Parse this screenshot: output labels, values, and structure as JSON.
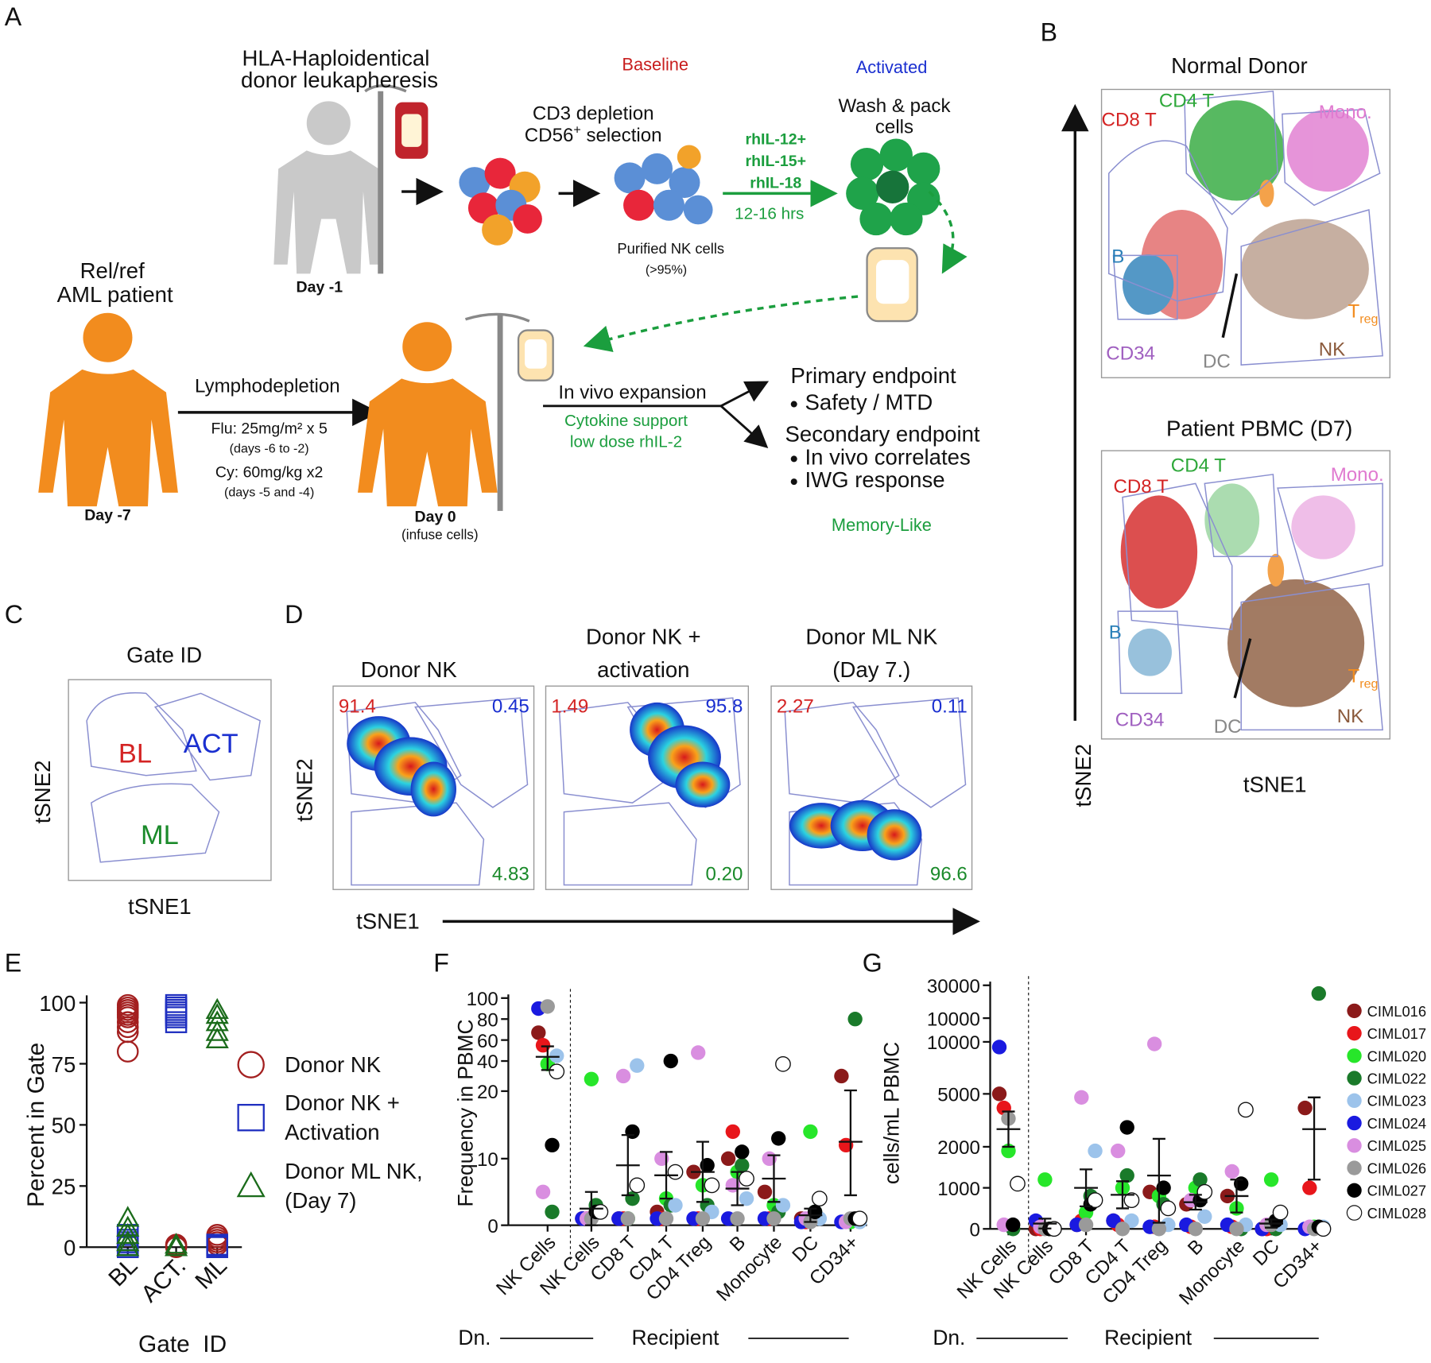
{
  "panels": [
    "A",
    "B",
    "C",
    "D",
    "E",
    "F",
    "G"
  ],
  "diagram": {
    "donor_title": [
      "HLA-Haploidentical",
      "donor leukapheresis"
    ],
    "day_donor": "Day -1",
    "patient_title": [
      "Rel/ref",
      "AML patient"
    ],
    "day_patient": "Day -7",
    "cd3": "CD3 depletion",
    "cd56": "CD56",
    "cd56_sup": "+",
    "selection": " selection",
    "purified": "Purified NK cells",
    "purity": "(>95%)",
    "baseline": "Baseline",
    "activated": "Activated",
    "memory_like": "Memory-Like",
    "cytokines": [
      "rhIL-12+",
      "rhIL-15+",
      "rhIL-18"
    ],
    "duration": "12-16 hrs",
    "wash": [
      "Wash & pack",
      "cells"
    ],
    "lympho": "Lymphodepletion",
    "flu": "Flu: 25mg/m² x 5",
    "flu_days": "(days -6 to -2)",
    "cy": "Cy: 60mg/kg x2",
    "cy_days": "(days -5 and -4)",
    "day0": "Day 0",
    "infuse": "(infuse cells)",
    "invivo": "In vivo expansion",
    "support": [
      "Cytokine support",
      "low dose rhIL-2"
    ],
    "primary": "Primary endpoint",
    "primary_items": [
      "Safety / MTD"
    ],
    "secondary": "Secondary endpoint",
    "secondary_items": [
      "In vivo correlates",
      "IWG response"
    ]
  },
  "tsne": {
    "titles": [
      "Normal Donor",
      "Patient PBMC (D7)"
    ],
    "xlabel": "tSNE1",
    "ylabel": "tSNE2",
    "cd8": "CD8 T",
    "cd4": "CD4 T",
    "mono": "Mono.",
    "b": "B",
    "treg_t": "T",
    "treg_sub": "reg",
    "cd34": "CD34",
    "dc": "DC",
    "nk": "NK"
  },
  "gates": {
    "title": "Gate ID",
    "labels": [
      "BL",
      "ACT",
      "ML"
    ],
    "xlabel": "tSNE1",
    "ylabel": "tSNE2"
  },
  "density": {
    "xlabel": "tSNE1",
    "ylabel": "tSNE2",
    "plots": [
      {
        "title": [
          "Donor NK"
        ],
        "values": [
          "91.4",
          "0.45",
          "4.83"
        ]
      },
      {
        "title": [
          "Donor NK +",
          "activation"
        ],
        "values": [
          "1.49",
          "95.8",
          "0.20"
        ]
      },
      {
        "title": [
          "Donor ML NK",
          "(Day 7.)"
        ],
        "values": [
          "2.27",
          "0.11",
          "96.6"
        ]
      }
    ]
  },
  "chart_data": [
    {
      "type": "strip",
      "ylabel": "Percent in Gate",
      "xlabel": "Gate  ID",
      "categories": [
        "BL",
        "ACT.",
        "ML"
      ],
      "ylim": [
        0,
        100
      ],
      "yticks": [
        0,
        25,
        50,
        75,
        100
      ],
      "series": [
        {
          "name": "Donor NK",
          "color": "#a31f1f",
          "marker": "circle",
          "values": [
            [
              80,
              88,
              90,
              92,
              94,
              95,
              96,
              97,
              98,
              99
            ],
            [
              0,
              0.5,
              1
            ],
            [
              1,
              2,
              3,
              4,
              5
            ]
          ]
        },
        {
          "name": "Donor NK + Activation",
          "color": "#1f2fc0",
          "marker": "square",
          "values": [
            [
              0,
              1,
              2,
              3,
              5
            ],
            [
              92,
              94,
              95,
              96,
              97,
              98,
              99
            ],
            [
              0,
              0.5,
              1
            ]
          ]
        },
        {
          "name": "Donor ML NK, (Day 7)",
          "color": "#1a6b1a",
          "marker": "triangle",
          "values": [
            [
              0,
              2,
              5,
              8,
              12
            ],
            [
              0,
              1
            ],
            [
              85,
              88,
              92,
              95,
              97
            ]
          ]
        }
      ]
    },
    {
      "type": "dot",
      "ylabel": "Frequency in PBMC",
      "group_labels": [
        "Dn.",
        "Recipient"
      ],
      "categories": [
        "NK Cells",
        "NK Cells",
        "CD8 T",
        "CD4 T",
        "CD4 Treg",
        "B",
        "Monocyte",
        "DC",
        "CD34+"
      ],
      "ylim": [
        0,
        100
      ],
      "yticks": [
        0,
        10,
        20,
        40,
        60,
        80,
        100
      ],
      "mean": [
        44,
        2.5,
        9,
        7.5,
        8,
        5.5,
        7,
        1.5,
        12.5
      ],
      "sem": [
        10,
        2.5,
        4.5,
        3.5,
        4.5,
        2.5,
        3.5,
        1,
        8
      ],
      "series": [
        {
          "color": "#8b1a1a",
          "values": [
            67,
            1,
            1,
            2,
            8,
            10,
            5,
            1,
            30
          ]
        },
        {
          "color": "#e8161b",
          "values": [
            55,
            1,
            1,
            1,
            1,
            14,
            1,
            0.5,
            12
          ]
        },
        {
          "color": "#27e62a",
          "values": [
            38,
            28,
            1,
            4,
            6,
            8,
            3,
            14,
            0.5
          ]
        },
        {
          "color": "#1a7a2a",
          "values": [
            2,
            3,
            4,
            3,
            3,
            9,
            2,
            2,
            80
          ]
        },
        {
          "color": "#9cc3eb",
          "values": [
            45,
            2,
            37,
            3,
            2,
            4,
            3,
            1,
            0.5
          ]
        },
        {
          "color": "#1a1ae0",
          "values": [
            90,
            1,
            1,
            1,
            1,
            1,
            1,
            0.5,
            0.5
          ]
        },
        {
          "color": "#d98ee0",
          "values": [
            5,
            1,
            30,
            10,
            48,
            6,
            10,
            1,
            0.5
          ]
        },
        {
          "color": "#9a9a9a",
          "values": [
            92,
            1,
            1,
            1,
            1,
            1,
            1,
            0.5,
            1
          ]
        },
        {
          "color": "#000000",
          "values": [
            12,
            2,
            14,
            40,
            9,
            11,
            13,
            2,
            1
          ]
        },
        {
          "color": "#ffffff",
          "values": [
            33,
            2,
            6,
            8,
            6,
            7,
            38,
            4,
            1
          ]
        }
      ]
    },
    {
      "type": "dot",
      "ylabel": "cells/mL PBMC",
      "group_labels": [
        "Dn.",
        "Recipient"
      ],
      "categories": [
        "NK Cells",
        "NK Cells",
        "CD8 T",
        "CD4 T",
        "CD4 Treg",
        "B",
        "Monocyte",
        "DC",
        "CD34+"
      ],
      "ylim": [
        0,
        30000
      ],
      "yticks": [
        0,
        1000,
        2000,
        5000,
        10000,
        30000
      ],
      "mean": [
        3000,
        130,
        1000,
        830,
        1300,
        650,
        800,
        130,
        3000
      ],
      "sem": [
        1000,
        120,
        450,
        330,
        1150,
        180,
        400,
        100,
        1800
      ],
      "series": [
        {
          "name": "CIML016",
          "color": "#8b1a1a",
          "values": [
            5000,
            0,
            100,
            200,
            900,
            600,
            800,
            0,
            4200
          ]
        },
        {
          "name": "CIML017",
          "color": "#e8161b",
          "values": [
            4200,
            0,
            200,
            100,
            50,
            50,
            50,
            0,
            1000
          ]
        },
        {
          "name": "CIML020",
          "color": "#27e62a",
          "values": [
            1900,
            1200,
            400,
            1000,
            800,
            1000,
            500,
            1200,
            50
          ]
        },
        {
          "name": "CIML022",
          "color": "#1a7a2a",
          "values": [
            0,
            0,
            800,
            1300,
            600,
            1200,
            0,
            0,
            25000
          ]
        },
        {
          "name": "CIML023",
          "color": "#9cc3eb",
          "values": [
            1100,
            0,
            1900,
            200,
            100,
            300,
            100,
            100,
            50
          ]
        },
        {
          "name": "CIML024",
          "color": "#1a1ae0",
          "values": [
            9500,
            200,
            100,
            200,
            50,
            100,
            100,
            0,
            0
          ]
        },
        {
          "name": "CIML025",
          "color": "#d98ee0",
          "values": [
            100,
            50,
            4800,
            1900,
            9800,
            700,
            1400,
            100,
            50
          ]
        },
        {
          "name": "CIML026",
          "color": "#9a9a9a",
          "values": [
            3600,
            0,
            100,
            0,
            0,
            0,
            0,
            100,
            0
          ]
        },
        {
          "name": "CIML027",
          "color": "#000000",
          "values": [
            100,
            0,
            600,
            3100,
            1000,
            700,
            1100,
            200,
            50
          ]
        },
        {
          "name": "CIML028",
          "color": "#ffffff",
          "values": [
            1100,
            0,
            700,
            700,
            500,
            900,
            4100,
            400,
            0
          ]
        }
      ]
    }
  ]
}
